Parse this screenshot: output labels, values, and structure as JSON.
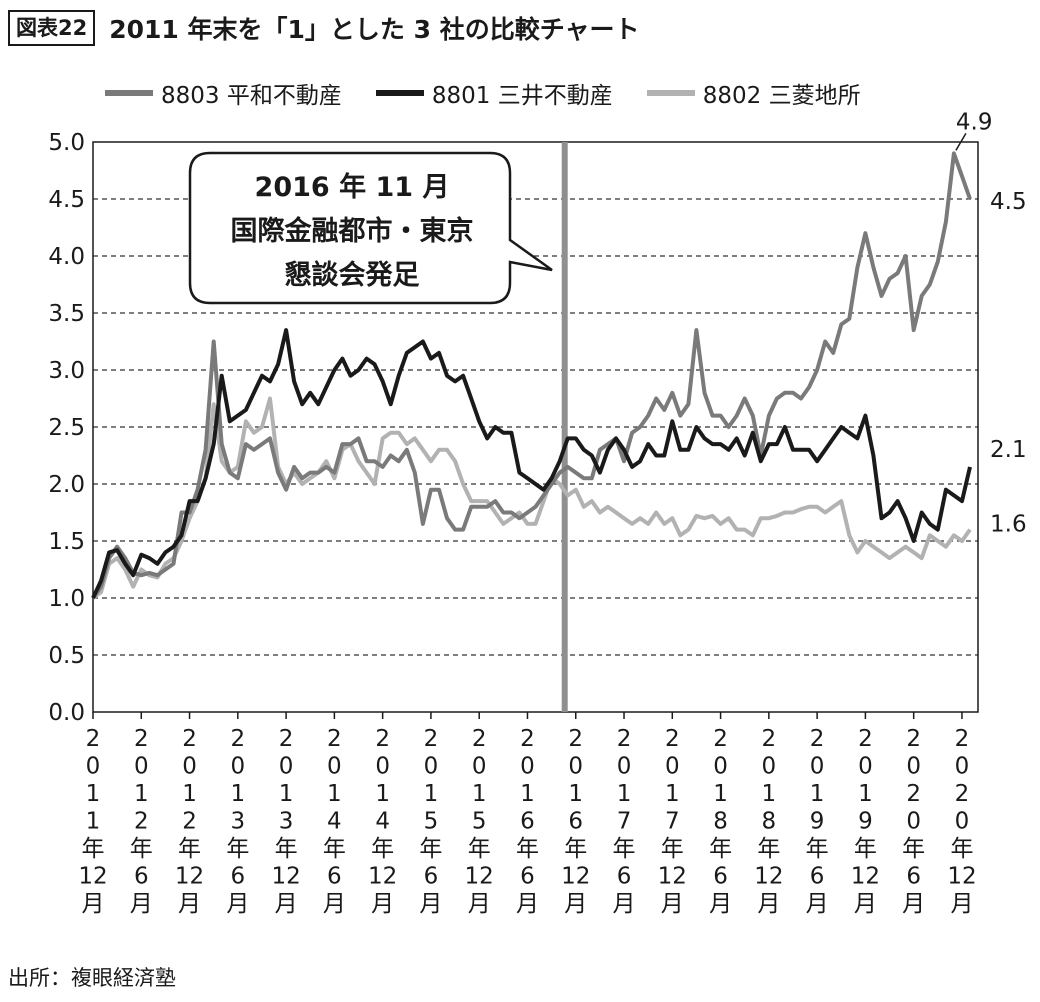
{
  "header": {
    "tag": "図表22",
    "title": "2011 年末を「1」とした 3 社の比較チャート"
  },
  "source": "出所：複眼経済塾",
  "callout": {
    "lines": [
      "2016 年 11 月",
      "国際金融都市・東京",
      "懇談会発足"
    ]
  },
  "colors": {
    "s8803": "#7a7a7a",
    "s8801": "#1a1a1a",
    "s8802": "#b2b2b2",
    "marker": "#8f8f8f"
  },
  "chart_data": {
    "type": "line",
    "ylim": [
      0,
      5
    ],
    "yticks": [
      "0.0",
      "0.5",
      "1.0",
      "1.5",
      "2.0",
      "2.5",
      "3.0",
      "3.5",
      "4.0",
      "4.5",
      "5.0"
    ],
    "xlabels": [
      "2011年12月",
      "2012年6月",
      "2012年12月",
      "2013年6月",
      "2013年12月",
      "2014年6月",
      "2014年12月",
      "2015年6月",
      "2015年12月",
      "2016年6月",
      "2016年12月",
      "2017年6月",
      "2017年12月",
      "2018年6月",
      "2018年12月",
      "2019年6月",
      "2019年12月",
      "2020年6月",
      "2020年12月"
    ],
    "xlabels_vertical": [
      [
        "2",
        "0",
        "1",
        "1",
        "年",
        "12",
        "月"
      ],
      [
        "2",
        "0",
        "1",
        "2",
        "年",
        "6",
        "月"
      ],
      [
        "2",
        "0",
        "1",
        "2",
        "年",
        "12",
        "月"
      ],
      [
        "2",
        "0",
        "1",
        "3",
        "年",
        "6",
        "月"
      ],
      [
        "2",
        "0",
        "1",
        "3",
        "年",
        "12",
        "月"
      ],
      [
        "2",
        "0",
        "1",
        "4",
        "年",
        "6",
        "月"
      ],
      [
        "2",
        "0",
        "1",
        "4",
        "年",
        "12",
        "月"
      ],
      [
        "2",
        "0",
        "1",
        "5",
        "年",
        "6",
        "月"
      ],
      [
        "2",
        "0",
        "1",
        "5",
        "年",
        "12",
        "月"
      ],
      [
        "2",
        "0",
        "1",
        "6",
        "年",
        "6",
        "月"
      ],
      [
        "2",
        "0",
        "1",
        "6",
        "年",
        "12",
        "月"
      ],
      [
        "2",
        "0",
        "1",
        "7",
        "年",
        "6",
        "月"
      ],
      [
        "2",
        "0",
        "1",
        "7",
        "年",
        "12",
        "月"
      ],
      [
        "2",
        "0",
        "1",
        "8",
        "年",
        "6",
        "月"
      ],
      [
        "2",
        "0",
        "1",
        "8",
        "年",
        "12",
        "月"
      ],
      [
        "2",
        "0",
        "1",
        "9",
        "年",
        "6",
        "月"
      ],
      [
        "2",
        "0",
        "1",
        "9",
        "年",
        "12",
        "月"
      ],
      [
        "2",
        "0",
        "2",
        "0",
        "年",
        "6",
        "月"
      ],
      [
        "2",
        "0",
        "2",
        "0",
        "年",
        "12",
        "月"
      ]
    ],
    "event_month": 59,
    "end_labels": [
      "4.9",
      "4.5",
      "2.1",
      "1.6"
    ],
    "series": [
      {
        "name": "8803 平和不動産",
        "values": [
          1.0,
          1.1,
          1.35,
          1.45,
          1.35,
          1.22,
          1.2,
          1.22,
          1.2,
          1.25,
          1.3,
          1.75,
          1.75,
          1.95,
          2.3,
          3.25,
          2.35,
          2.1,
          2.05,
          2.35,
          2.3,
          2.35,
          2.4,
          2.1,
          1.95,
          2.15,
          2.05,
          2.1,
          2.1,
          2.15,
          2.1,
          2.35,
          2.35,
          2.4,
          2.2,
          2.2,
          2.15,
          2.25,
          2.2,
          2.3,
          2.1,
          1.65,
          1.95,
          1.95,
          1.7,
          1.6,
          1.6,
          1.8,
          1.8,
          1.8,
          1.85,
          1.75,
          1.75,
          1.7,
          1.75,
          1.8,
          1.9,
          2.0,
          2.1,
          2.15,
          2.1,
          2.05,
          2.05,
          2.3,
          2.35,
          2.4,
          2.2,
          2.45,
          2.5,
          2.6,
          2.75,
          2.65,
          2.8,
          2.6,
          2.7,
          3.35,
          2.8,
          2.6,
          2.6,
          2.5,
          2.6,
          2.75,
          2.6,
          2.25,
          2.6,
          2.75,
          2.8,
          2.8,
          2.75,
          2.85,
          3.0,
          3.25,
          3.15,
          3.4,
          3.45,
          3.9,
          4.2,
          3.9,
          3.65,
          3.8,
          3.85,
          4.0,
          3.35,
          3.65,
          3.75,
          3.95,
          4.3,
          4.9,
          4.7,
          4.5
        ]
      },
      {
        "name": "8801 三井不動産",
        "values": [
          1.0,
          1.15,
          1.4,
          1.42,
          1.3,
          1.2,
          1.38,
          1.35,
          1.3,
          1.4,
          1.45,
          1.55,
          1.85,
          1.85,
          2.05,
          2.35,
          2.95,
          2.55,
          2.6,
          2.65,
          2.8,
          2.95,
          2.9,
          3.05,
          3.35,
          2.9,
          2.7,
          2.8,
          2.7,
          2.85,
          3.0,
          3.1,
          2.95,
          3.0,
          3.1,
          3.05,
          2.9,
          2.7,
          2.95,
          3.15,
          3.2,
          3.25,
          3.1,
          3.15,
          2.95,
          2.9,
          2.95,
          2.75,
          2.55,
          2.4,
          2.5,
          2.45,
          2.45,
          2.1,
          2.05,
          2.0,
          1.95,
          2.05,
          2.2,
          2.4,
          2.4,
          2.3,
          2.25,
          2.1,
          2.3,
          2.4,
          2.3,
          2.15,
          2.2,
          2.35,
          2.25,
          2.25,
          2.55,
          2.3,
          2.3,
          2.5,
          2.4,
          2.35,
          2.35,
          2.3,
          2.4,
          2.25,
          2.45,
          2.2,
          2.35,
          2.35,
          2.5,
          2.3,
          2.3,
          2.3,
          2.2,
          2.3,
          2.4,
          2.5,
          2.45,
          2.4,
          2.6,
          2.25,
          1.7,
          1.75,
          1.85,
          1.7,
          1.5,
          1.75,
          1.65,
          1.6,
          1.95,
          1.9,
          1.85,
          2.15
        ]
      },
      {
        "name": "8802 三菱地所",
        "values": [
          1.0,
          1.05,
          1.3,
          1.35,
          1.25,
          1.1,
          1.25,
          1.2,
          1.18,
          1.3,
          1.35,
          1.5,
          1.7,
          1.85,
          2.05,
          2.7,
          2.2,
          2.1,
          2.15,
          2.55,
          2.45,
          2.5,
          2.75,
          2.15,
          2.0,
          2.1,
          2.0,
          2.05,
          2.1,
          2.2,
          2.05,
          2.3,
          2.35,
          2.2,
          2.1,
          2.0,
          2.4,
          2.45,
          2.45,
          2.35,
          2.4,
          2.3,
          2.2,
          2.3,
          2.3,
          2.2,
          2.0,
          1.85,
          1.85,
          1.85,
          1.75,
          1.65,
          1.7,
          1.75,
          1.65,
          1.65,
          1.85,
          2.05,
          2.0,
          1.9,
          1.95,
          1.8,
          1.85,
          1.75,
          1.8,
          1.75,
          1.7,
          1.65,
          1.7,
          1.65,
          1.75,
          1.65,
          1.7,
          1.55,
          1.6,
          1.72,
          1.7,
          1.72,
          1.65,
          1.7,
          1.6,
          1.6,
          1.55,
          1.7,
          1.7,
          1.72,
          1.75,
          1.75,
          1.78,
          1.8,
          1.8,
          1.75,
          1.8,
          1.85,
          1.55,
          1.4,
          1.5,
          1.45,
          1.4,
          1.35,
          1.4,
          1.45,
          1.4,
          1.35,
          1.55,
          1.5,
          1.45,
          1.55,
          1.5,
          1.6
        ]
      }
    ]
  }
}
